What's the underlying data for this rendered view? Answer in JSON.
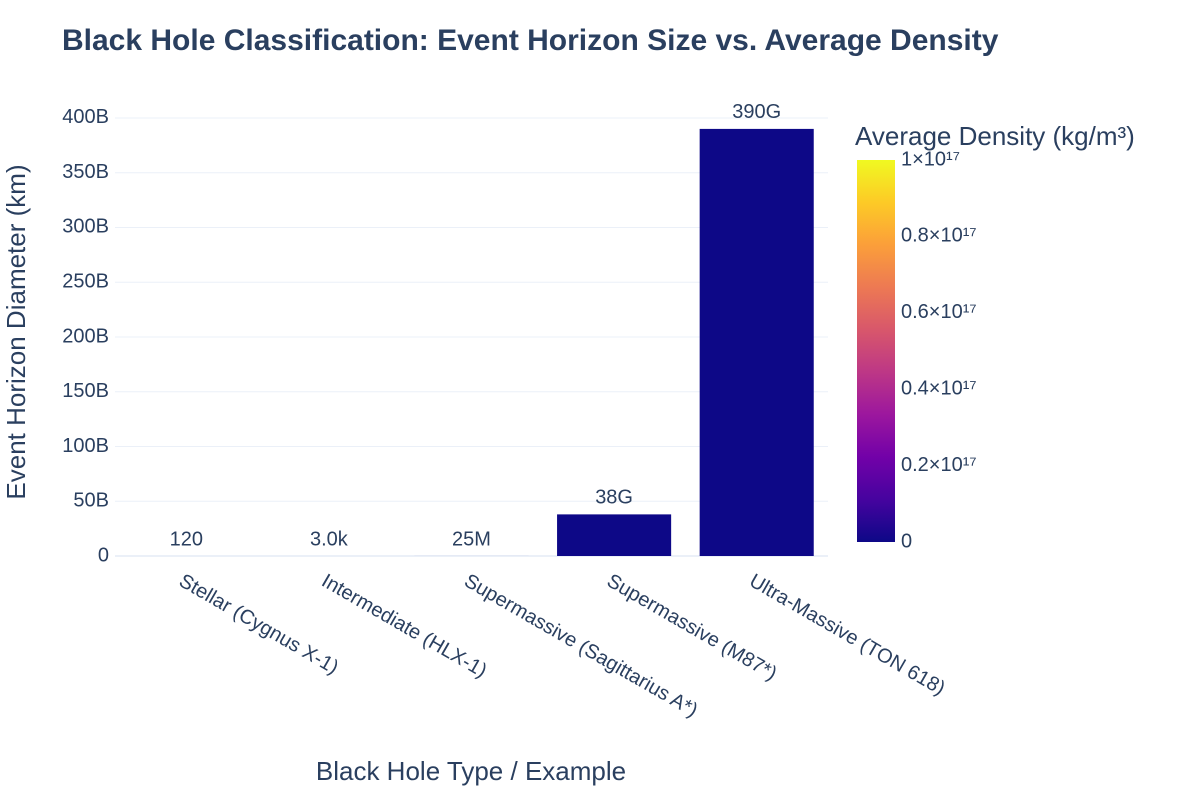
{
  "chart_data": {
    "type": "bar",
    "title": "Black Hole Classification: Event Horizon Size vs. Average Density",
    "x_label": "Black Hole Type / Example",
    "y_label": "Event Horizon Diameter (km)",
    "categories": [
      "Stellar (Cygnus X-1)",
      "Intermediate (HLX-1)",
      "Supermassive (Sagittarius A*)",
      "Supermassive (M87*)",
      "Ultra-Massive (TON 618)"
    ],
    "values": [
      120,
      3000,
      25000000,
      38000000000,
      390000000000
    ],
    "value_labels": [
      "120",
      "3.0k",
      "25M",
      "38G",
      "390G"
    ],
    "color": "#0d0887",
    "ylim": [
      0,
      410000000000
    ],
    "yticks": [
      0,
      {
        "value": 50000000000,
        "label": "50B"
      },
      {
        "value": 100000000000,
        "label": "100B"
      },
      {
        "value": 150000000000,
        "label": "150B"
      },
      {
        "value": 200000000000,
        "label": "200B"
      },
      {
        "value": 250000000000,
        "label": "250B"
      },
      {
        "value": 300000000000,
        "label": "300B"
      },
      {
        "value": 350000000000,
        "label": "350B"
      },
      {
        "value": 400000000000,
        "label": "400B"
      }
    ],
    "grid": true,
    "colorbar": {
      "title": "Average Density (kg/m³)",
      "lim": [
        0,
        100000000000000000
      ],
      "colorscale": [
        "#0d0887",
        "#46039f",
        "#7201a8",
        "#9c179e",
        "#bd3786",
        "#d8576b",
        "#ed7953",
        "#fb9f3a",
        "#fdca26",
        "#f0f921"
      ],
      "ticks": [
        0,
        {
          "value": 20000000000000000,
          "label": "0.2×10¹⁷"
        },
        {
          "value": 40000000000000000,
          "label": "0.4×10¹⁷"
        },
        {
          "value": 60000000000000000,
          "label": "0.6×10¹⁷"
        },
        {
          "value": 80000000000000000,
          "label": "0.8×10¹⁷"
        },
        {
          "value": 100000000000000000,
          "label": "1×10¹⁷"
        }
      ]
    }
  }
}
